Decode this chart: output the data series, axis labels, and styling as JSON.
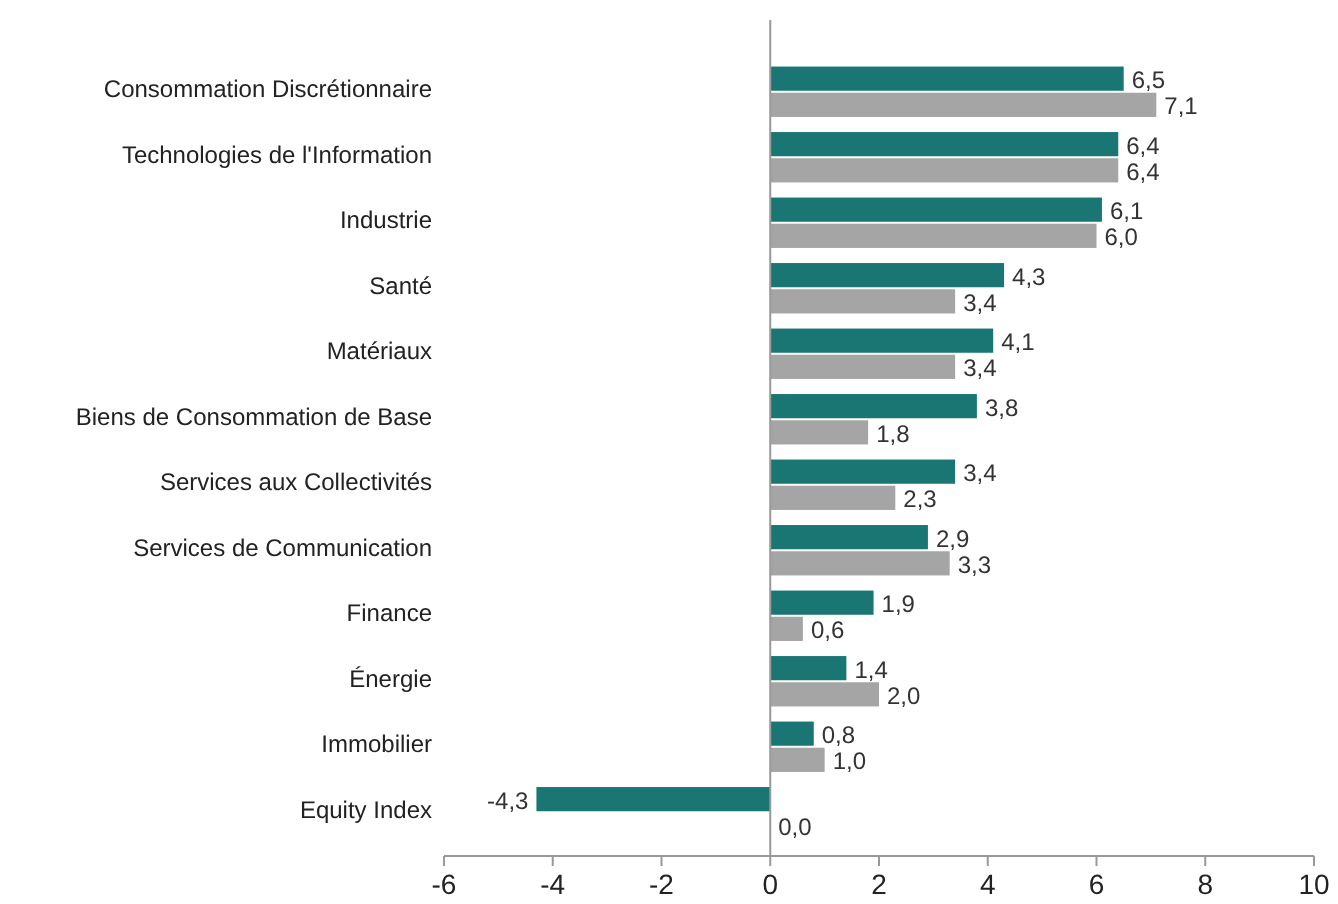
{
  "chart_data": {
    "type": "bar",
    "orientation": "horizontal",
    "categories": [
      "Consommation Discrétionnaire",
      "Technologies de l'Information",
      "Industrie",
      "Santé",
      "Matériaux",
      "Biens de Consommation de Base",
      "Services aux Collectivités",
      "Services de Communication",
      "Finance",
      "Énergie",
      "Immobilier",
      "Equity Index"
    ],
    "series": [
      {
        "color": "#1a7672",
        "values": [
          6.5,
          6.4,
          6.1,
          4.3,
          4.1,
          3.8,
          3.4,
          2.9,
          1.9,
          1.4,
          0.8,
          -4.3
        ],
        "value_labels": [
          "6,5",
          "6,4",
          "6,1",
          "4,3",
          "4,1",
          "3,8",
          "3,4",
          "2,9",
          "1,9",
          "1,4",
          "0,8",
          "-4,3"
        ]
      },
      {
        "color": "#a5a5a5",
        "values": [
          7.1,
          6.4,
          6.0,
          3.4,
          3.4,
          1.8,
          2.3,
          3.3,
          0.6,
          2.0,
          1.0,
          0.0
        ],
        "value_labels": [
          "7,1",
          "6,4",
          "6,0",
          "3,4",
          "3,4",
          "1,8",
          "2,3",
          "3,3",
          "0,6",
          "2,0",
          "1,0",
          "0,0"
        ]
      }
    ],
    "xlim": [
      -6,
      10
    ],
    "xticks": [
      -6,
      -4,
      -2,
      0,
      2,
      4,
      6,
      8,
      10
    ]
  }
}
